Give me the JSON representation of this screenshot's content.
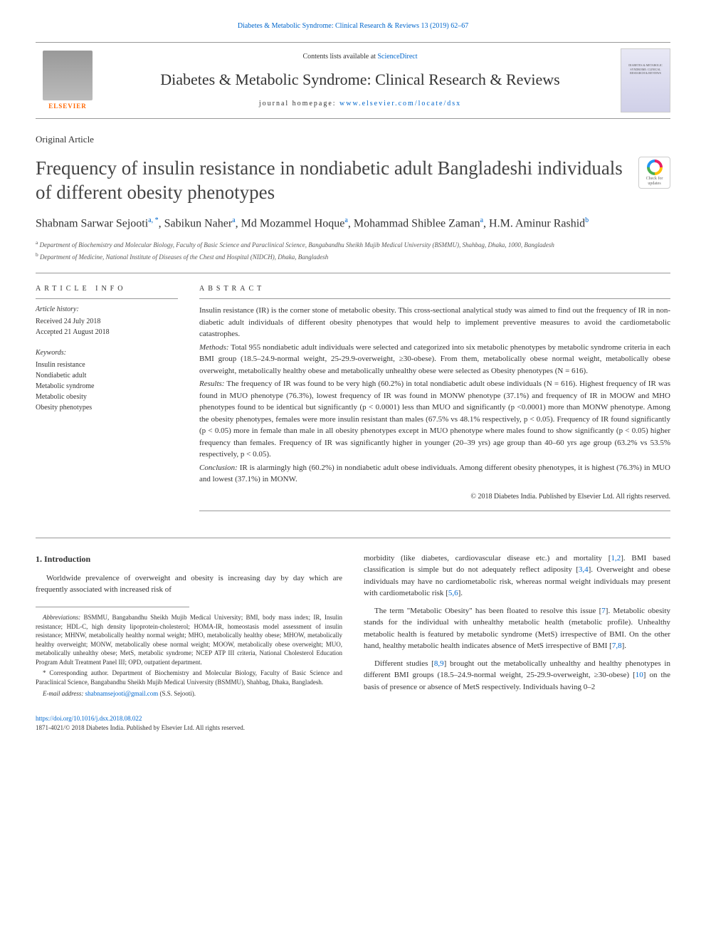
{
  "top_citation": "Diabetes & Metabolic Syndrome: Clinical Research & Reviews 13 (2019) 62–67",
  "header": {
    "contents_text": "Contents lists available at ",
    "contents_link": "ScienceDirect",
    "journal_name": "Diabetes & Metabolic Syndrome: Clinical Research & Reviews",
    "homepage_label": "journal homepage: ",
    "homepage_url": "www.elsevier.com/locate/dsx",
    "elsevier_label": "ELSEVIER",
    "cover_text": "DIABETES & METABOLIC SYNDROME: CLINICAL RESEARCH & REVIEWS"
  },
  "article_type": "Original Article",
  "title": "Frequency of insulin resistance in nondiabetic adult Bangladeshi individuals of different obesity phenotypes",
  "crossmark": "Check for updates",
  "authors": {
    "list": "Shabnam Sarwar Sejooti",
    "sup1": "a, *",
    "a2": ", Sabikun Naher",
    "sup2": "a",
    "a3": ", Md Mozammel Hoque",
    "sup3": "a",
    "a4": ", Mohammad Shiblee Zaman",
    "sup4": "a",
    "a5": ", H.M. Aminur Rashid",
    "sup5": "b"
  },
  "affiliations": {
    "a_sup": "a",
    "a_text": " Department of Biochemistry and Molecular Biology, Faculty of Basic Science and Paraclinical Science, Bangabandhu Sheikh Mujib Medical University (BSMMU), Shahbag, Dhaka, 1000, Bangladesh",
    "b_sup": "b",
    "b_text": " Department of Medicine, National Institute of Diseases of the Chest and Hospital (NIDCH), Dhaka, Bangladesh"
  },
  "article_info": {
    "heading": "ARTICLE INFO",
    "history_label": "Article history:",
    "received": "Received 24 July 2018",
    "accepted": "Accepted 21 August 2018",
    "keywords_label": "Keywords:",
    "keywords": [
      "Insulin resistance",
      "Nondiabetic adult",
      "Metabolic syndrome",
      "Metabolic obesity",
      "Obesity phenotypes"
    ]
  },
  "abstract": {
    "heading": "ABSTRACT",
    "intro": "Insulin resistance (IR) is the corner stone of metabolic obesity. This cross-sectional analytical study was aimed to find out the frequency of IR in non-diabetic adult individuals of different obesity phenotypes that would help to implement preventive measures to avoid the cardiometabolic catastrophes.",
    "methods_label": "Methods:",
    "methods": " Total 955 nondiabetic adult individuals were selected and categorized into six metabolic phenotypes by metabolic syndrome criteria in each BMI group (18.5–24.9-normal weight, 25-29.9-overweight, ≥30-obese). From them, metabolically obese normal weight, metabolically obese overweight, metabolically healthy obese and metabolically unhealthy obese were selected as Obesity phenotypes (N = 616).",
    "results_label": "Results:",
    "results": " The frequency of IR was found to be very high (60.2%) in total nondiabetic adult obese individuals (N = 616). Highest frequency of IR was found in MUO phenotype (76.3%), lowest frequency of IR was found in MONW phenotype (37.1%) and frequency of IR in MOOW and MHO phenotypes found to be identical but significantly (p < 0.0001) less than MUO and significantly (p <0.0001) more than MONW phenotype. Among the obesity phenotypes, females were more insulin resistant than males (67.5% vs 48.1% respectively, p < 0.05). Frequency of IR found significantly (p < 0.05) more in female than male in all obesity phenotypes except in MUO phenotype where males found to show significantly (p < 0.05) higher frequency than females. Frequency of IR was significantly higher in younger (20–39 yrs) age group than 40–60 yrs age group (63.2% vs 53.5% respectively, p < 0.05).",
    "conclusion_label": "Conclusion:",
    "conclusion": " IR is alarmingly high (60.2%) in nondiabetic adult obese individuals. Among different obesity phenotypes, it is highest (76.3%) in MUO and lowest (37.1%) in MONW.",
    "copyright": "© 2018 Diabetes India. Published by Elsevier Ltd. All rights reserved."
  },
  "body": {
    "intro_heading": "1. Introduction",
    "col1_p1": "Worldwide prevalence of overweight and obesity is increasing day by day which are frequently associated with increased risk of",
    "col2_p1_a": "morbidity (like diabetes, cardiovascular disease etc.) and mortality [",
    "col2_p1_ref1": "1,2",
    "col2_p1_b": "]. BMI based classification is simple but do not adequately reflect adiposity [",
    "col2_p1_ref2": "3,4",
    "col2_p1_c": "]. Overweight and obese individuals may have no cardiometabolic risk, whereas normal weight individuals may present with cardiometabolic risk [",
    "col2_p1_ref3": "5,6",
    "col2_p1_d": "].",
    "col2_p2_a": "The term \"Metabolic Obesity\" has been floated to resolve this issue [",
    "col2_p2_ref1": "7",
    "col2_p2_b": "]. Metabolic obesity stands for the individual with unhealthy metabolic health (metabolic profile). Unhealthy metabolic health is featured by metabolic syndrome (MetS) irrespective of BMI. On the other hand, healthy metabolic health indicates absence of MetS irrespective of BMI [",
    "col2_p2_ref2": "7,8",
    "col2_p2_c": "].",
    "col2_p3_a": "Different studies [",
    "col2_p3_ref1": "8,9",
    "col2_p3_b": "] brought out the metabolically unhealthy and healthy phenotypes in different BMI groups (18.5–24.9-normal weight, 25-29.9-overweight, ≥30-obese) [",
    "col2_p3_ref2": "10",
    "col2_p3_c": "] on the basis of presence or absence of MetS respectively. Individuals having 0–2"
  },
  "footnotes": {
    "abbrev_label": "Abbreviations:",
    "abbrev": " BSMMU, Bangabandhu Sheikh Mujib Medical University; BMI, body mass index; IR, Insulin resistance; HDL-C, high density lipoprotein-cholesterol; HOMA-IR, homeostasis model assessment of insulin resistance; MHNW, metabolically healthy normal weight; MHO, metabolically healthy obese; MHOW, metabolically healthy overweight; MONW, metabolically obese normal weight; MOOW, metabolically obese overweight; MUO, metabolically unhealthy obese; MetS, metabolic syndrome; NCEP ATP III criteria, National Cholesterol Education Program Adult Treatment Panel III; OPD, outpatient department.",
    "corr_label": "* Corresponding author.",
    "corr": " Department of Biochemistry and Molecular Biology, Faculty of Basic Science and Paraclinical Science, Bangabandhu Sheikh Mujib Medical University (BSMMU), Shahbag, Dhaka, Bangladesh.",
    "email_label": "E-mail address: ",
    "email": "shabnamsejooti@gmail.com",
    "email_suffix": " (S.S. Sejooti)."
  },
  "doi": {
    "url": "https://doi.org/10.1016/j.dsx.2018.08.022",
    "issn": "1871-4021/© 2018 Diabetes India. Published by Elsevier Ltd. All rights reserved."
  },
  "colors": {
    "link": "#0066cc",
    "text": "#333333",
    "border": "#999999",
    "elsevier_orange": "#ff6600"
  }
}
